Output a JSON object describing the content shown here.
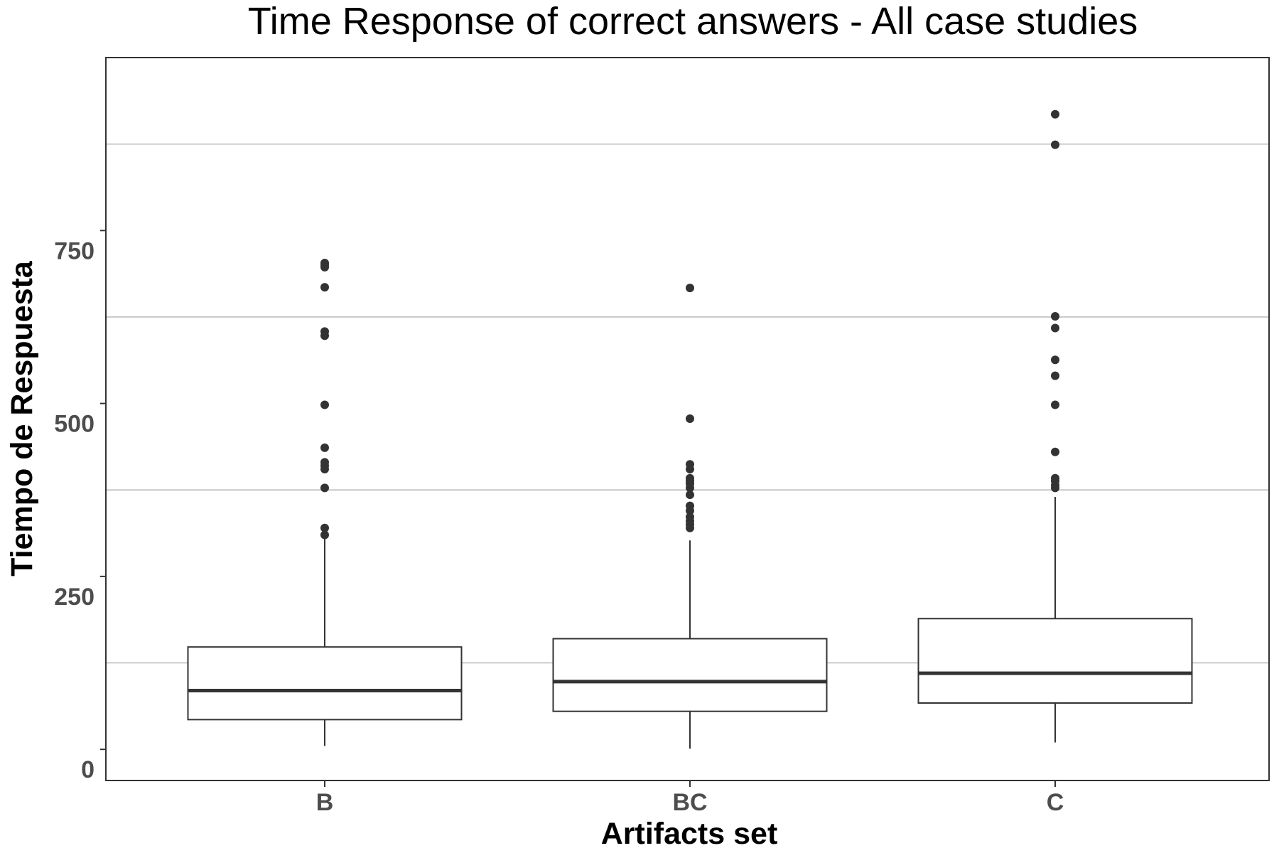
{
  "chart_data": {
    "type": "boxplot",
    "title": "Time Response of correct answers - All case studies",
    "xlabel": "Artifacts set",
    "ylabel": "Tiempo de Respuesta",
    "ylim": [
      -45,
      1000
    ],
    "yticks": [
      0,
      250,
      500,
      750
    ],
    "ytick_labels": [
      "0",
      "250",
      "500",
      "750"
    ],
    "grid_minor_y": [
      125,
      375,
      625,
      875
    ],
    "grid": true,
    "legend": "none",
    "categories": [
      "B",
      "BC",
      "C"
    ],
    "boxes": [
      {
        "name": "B",
        "whisker_low": 5,
        "q1": 43,
        "median": 85,
        "q3": 148,
        "whisker_high": 308,
        "outliers": [
          310,
          320,
          378,
          405,
          410,
          415,
          436,
          498,
          598,
          604,
          668,
          697,
          700,
          703
        ]
      },
      {
        "name": "BC",
        "whisker_low": 1,
        "q1": 55,
        "median": 98,
        "q3": 160,
        "whisker_high": 302,
        "outliers": [
          320,
          325,
          330,
          336,
          345,
          352,
          368,
          378,
          384,
          388,
          392,
          405,
          412,
          478,
          667
        ]
      },
      {
        "name": "C",
        "whisker_low": 10,
        "q1": 67,
        "median": 110,
        "q3": 189,
        "whisker_high": 365,
        "outliers": [
          378,
          382,
          388,
          392,
          430,
          498,
          540,
          563,
          609,
          626,
          874,
          918
        ]
      }
    ]
  }
}
